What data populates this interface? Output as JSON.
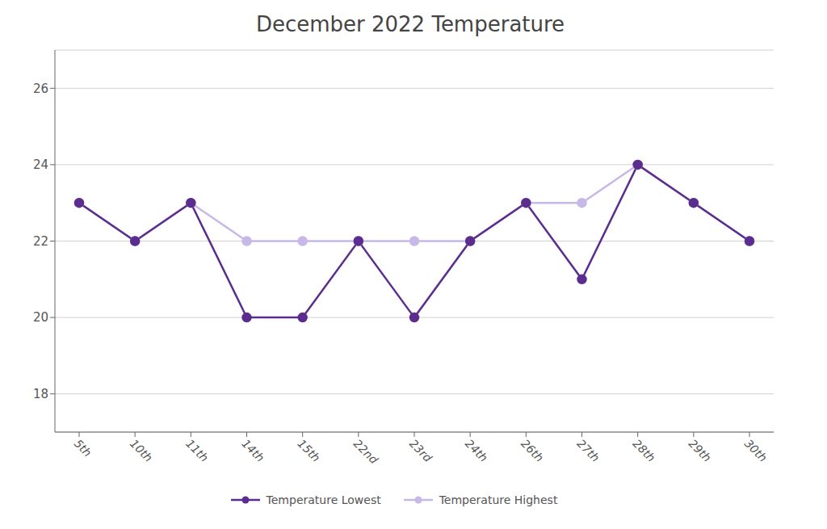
{
  "chart_data": {
    "type": "line",
    "title": "December 2022 Temperature",
    "categories": [
      "5th",
      "10th",
      "11th",
      "14th",
      "15th",
      "22nd",
      "23rd",
      "24th",
      "26th",
      "27th",
      "28th",
      "29th",
      "30th"
    ],
    "series": [
      {
        "name": "Temperature Highest",
        "color": "#C8B8E8",
        "marker": "circle",
        "values": [
          23,
          22,
          23,
          22,
          22,
          22,
          22,
          22,
          23,
          23,
          24,
          23,
          22
        ]
      },
      {
        "name": "Temperature Lowest",
        "color": "#5B2D8E",
        "marker": "circle",
        "values": [
          23,
          22,
          23,
          20,
          20,
          22,
          20,
          22,
          23,
          21,
          24,
          23,
          22
        ]
      }
    ],
    "ylim": [
      17,
      27
    ],
    "yticks": [
      18,
      20,
      22,
      24,
      26
    ],
    "grid": true,
    "legend": "bottom"
  }
}
